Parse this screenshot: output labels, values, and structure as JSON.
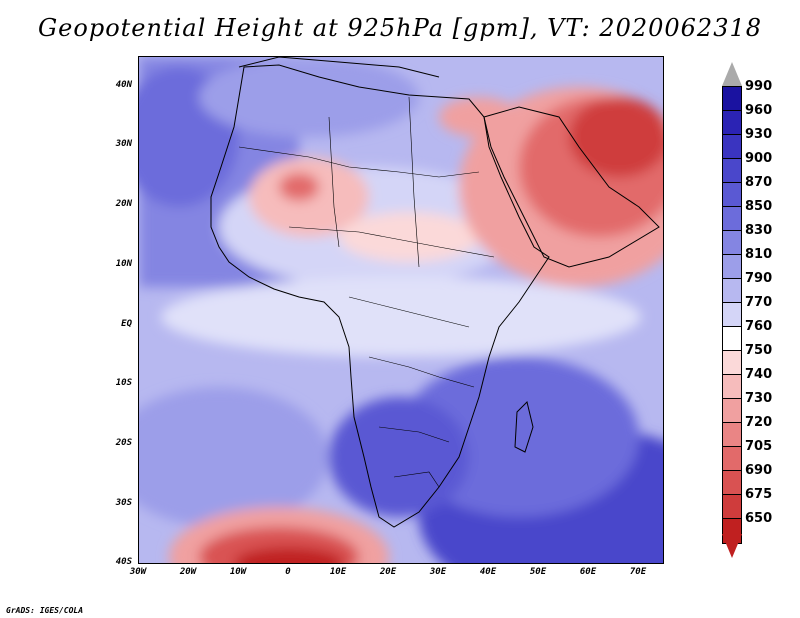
{
  "title": "Geopotential Height at 925hPa [gpm], VT: 2020062318",
  "map": {
    "lat_labels": [
      "40N",
      "30N",
      "20N",
      "10N",
      "EQ",
      "10S",
      "20S",
      "30S",
      "40S"
    ],
    "lon_labels": [
      "30W",
      "20W",
      "10W",
      "0",
      "10E",
      "20E",
      "30E",
      "40E",
      "50E",
      "60E",
      "70E"
    ]
  },
  "colorbar": {
    "top_arrow_color": "#aaaaaa",
    "bottom_arrow_color": "#c02020",
    "levels": [
      {
        "label": "990",
        "color": "#1a12a0"
      },
      {
        "label": "960",
        "color": "#2b23b4"
      },
      {
        "label": "930",
        "color": "#3a34c0"
      },
      {
        "label": "900",
        "color": "#4a47cb"
      },
      {
        "label": "870",
        "color": "#5a59d3"
      },
      {
        "label": "850",
        "color": "#6c6cdb"
      },
      {
        "label": "830",
        "color": "#8485e2"
      },
      {
        "label": "810",
        "color": "#9c9ee9"
      },
      {
        "label": "790",
        "color": "#b7b8f0"
      },
      {
        "label": "770",
        "color": "#d4d5f7"
      },
      {
        "label": "760",
        "color": "#ffffff"
      },
      {
        "label": "750",
        "color": "#fbd9d9"
      },
      {
        "label": "740",
        "color": "#f6bcbc"
      },
      {
        "label": "730",
        "color": "#f0a0a0"
      },
      {
        "label": "720",
        "color": "#ea8585"
      },
      {
        "label": "705",
        "color": "#e26a6a"
      },
      {
        "label": "690",
        "color": "#d95252"
      },
      {
        "label": "675",
        "color": "#cf3c3c"
      },
      {
        "label": "650",
        "color": "#c02020"
      }
    ]
  },
  "footer": "GrADS: IGES/COLA"
}
